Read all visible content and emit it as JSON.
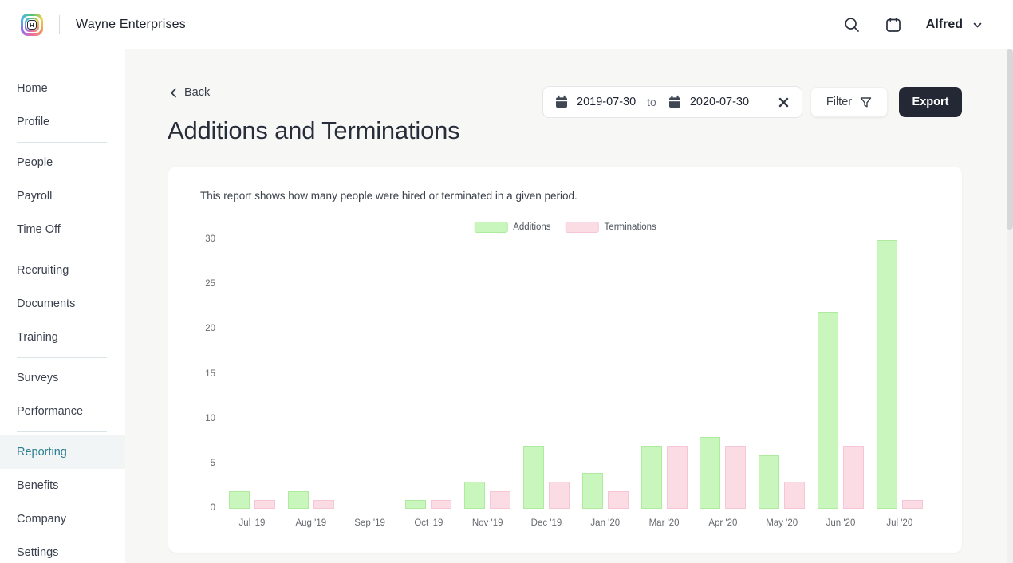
{
  "header": {
    "company": "Wayne Enterprises",
    "logo_letter": "H",
    "user": "Alfred",
    "icons": {
      "search": "magnifying-glass",
      "calendar": "calendar-outline",
      "user_chevron": "chevron-down"
    }
  },
  "sidebar": {
    "items": [
      {
        "label": "Home"
      },
      {
        "label": "Profile",
        "divider_after": true
      },
      {
        "label": "People"
      },
      {
        "label": "Payroll"
      },
      {
        "label": "Time Off",
        "divider_after": true
      },
      {
        "label": "Recruiting"
      },
      {
        "label": "Documents"
      },
      {
        "label": "Training",
        "divider_after": true
      },
      {
        "label": "Surveys"
      },
      {
        "label": "Performance",
        "divider_after": true
      },
      {
        "label": "Reporting",
        "active": true
      },
      {
        "label": "Benefits"
      },
      {
        "label": "Company"
      },
      {
        "label": "Settings"
      }
    ]
  },
  "toolbar": {
    "back_label": "Back",
    "date_range": {
      "start": "2019-07-30",
      "separator": "to",
      "end": "2020-07-30"
    },
    "filter_label": "Filter",
    "export_label": "Export",
    "icons": {
      "back": "chevron-left",
      "date": "calendar-solid",
      "clear": "x-mark",
      "filter": "funnel"
    }
  },
  "page": {
    "title": "Additions and Terminations"
  },
  "report": {
    "description": "This report shows how many people were hired or terminated in a given period."
  },
  "chart_data": {
    "type": "bar",
    "categories": [
      "Jul '19",
      "Aug '19",
      "Sep '19",
      "Oct '19",
      "Nov '19",
      "Dec '19",
      "Jan '20",
      "Mar '20",
      "Apr '20",
      "May '20",
      "Jun '20",
      "Jul '20"
    ],
    "series": [
      {
        "name": "Additions",
        "color": "#c9f6bc",
        "border_color": "#aeeb9e",
        "values": [
          2,
          2,
          0,
          1,
          3,
          7,
          4,
          7,
          8,
          6,
          22,
          30
        ]
      },
      {
        "name": "Terminations",
        "color": "#fbdbe4",
        "border_color": "#f5c6d3",
        "values": [
          1,
          1,
          0,
          1,
          2,
          3,
          2,
          7,
          7,
          3,
          7,
          1
        ]
      }
    ],
    "title": "",
    "xlabel": "",
    "ylabel": "",
    "ylim": [
      0,
      30
    ],
    "yticks": [
      0,
      5,
      10,
      15,
      20,
      25,
      30
    ],
    "grid": false,
    "legend_position": "top"
  },
  "colors": {
    "accent_teal": "#2c7e90",
    "export_bg": "#232834",
    "page_bg": "#f7f7f6",
    "axis_label": "#66696e"
  }
}
